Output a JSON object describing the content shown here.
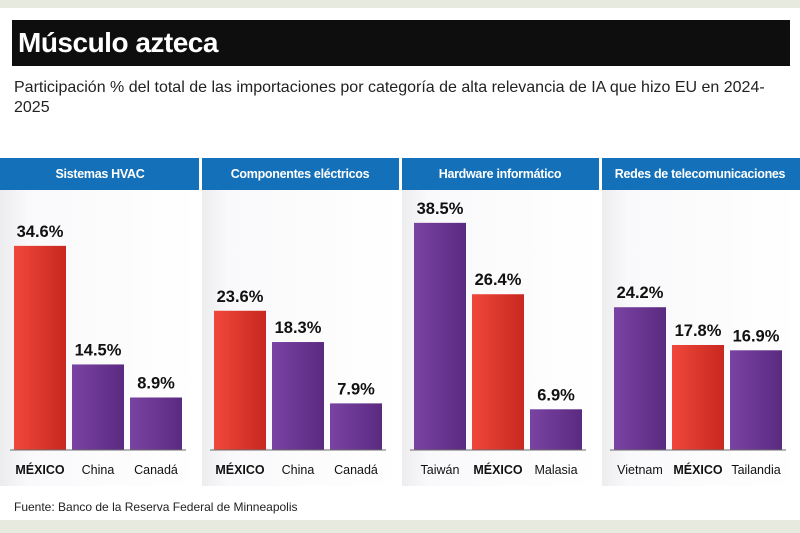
{
  "title": "Músculo azteca",
  "subtitle": "Participación % del total de las importaciones por categoría de alta relevancia de IA que hizo EU en 2024-2025",
  "source": "Fuente: Banco de la Reserva Federal de Minneapolis",
  "colors": {
    "mexico": "#e5362a",
    "other": "#6a3590",
    "header": "#1470b8"
  },
  "chart_data": [
    {
      "type": "bar",
      "title": "Sistemas HVAC",
      "categories": [
        "MÉXICO",
        "China",
        "Canadá"
      ],
      "values": [
        34.6,
        14.5,
        8.9
      ],
      "value_labels": [
        "34.6%",
        "14.5%",
        "8.9%"
      ],
      "highlight": [
        true,
        false,
        false
      ],
      "ylim": [
        0,
        40
      ]
    },
    {
      "type": "bar",
      "title": "Componentes eléctricos",
      "categories": [
        "MÉXICO",
        "China",
        "Canadá"
      ],
      "values": [
        23.6,
        18.3,
        7.9
      ],
      "value_labels": [
        "23.6%",
        "18.3%",
        "7.9%"
      ],
      "highlight": [
        true,
        false,
        false
      ],
      "ylim": [
        0,
        40
      ]
    },
    {
      "type": "bar",
      "title": "Hardware informático",
      "categories": [
        "Taiwán",
        "MÉXICO",
        "Malasia"
      ],
      "values": [
        38.5,
        26.4,
        6.9
      ],
      "value_labels": [
        "38.5%",
        "26.4%",
        "6.9%"
      ],
      "highlight": [
        false,
        true,
        false
      ],
      "ylim": [
        0,
        40
      ]
    },
    {
      "type": "bar",
      "title": "Redes de telecomunicaciones",
      "categories": [
        "Vietnam",
        "MÉXICO",
        "Tailandia"
      ],
      "values": [
        24.2,
        17.8,
        16.9
      ],
      "value_labels": [
        "24.2%",
        "17.8%",
        "16.9%"
      ],
      "highlight": [
        false,
        true,
        false
      ],
      "ylim": [
        0,
        40
      ]
    }
  ]
}
